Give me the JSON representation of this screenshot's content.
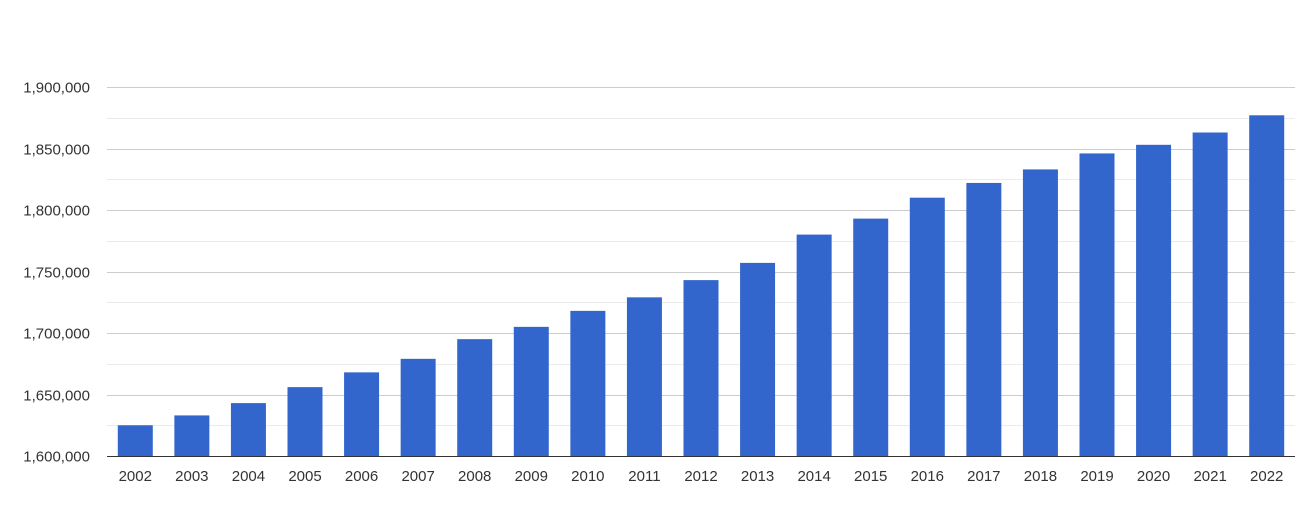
{
  "chart_data": {
    "type": "bar",
    "categories": [
      "2002",
      "2003",
      "2004",
      "2005",
      "2006",
      "2007",
      "2008",
      "2009",
      "2010",
      "2011",
      "2012",
      "2013",
      "2014",
      "2015",
      "2016",
      "2017",
      "2018",
      "2019",
      "2020",
      "2021",
      "2022"
    ],
    "series": [
      {
        "values": [
          1625000,
          1633000,
          1643000,
          1656000,
          1668000,
          1679000,
          1695000,
          1705000,
          1718000,
          1729000,
          1743000,
          1757000,
          1780000,
          1793000,
          1810000,
          1822000,
          1833000,
          1846000,
          1853000,
          1863000,
          1877000
        ]
      }
    ],
    "ylim": [
      1600000,
      1900000
    ],
    "y_ticks": [
      1600000,
      1650000,
      1700000,
      1750000,
      1800000,
      1850000,
      1900000
    ],
    "y_tick_labels": [
      "1,600,000",
      "1,650,000",
      "1,700,000",
      "1,750,000",
      "1,800,000",
      "1,850,000",
      "1,900,000"
    ],
    "grid": true,
    "bar_color": "#3366cc",
    "grid_color": "#cccccc",
    "minor_grid_color": "#ebebeb"
  }
}
